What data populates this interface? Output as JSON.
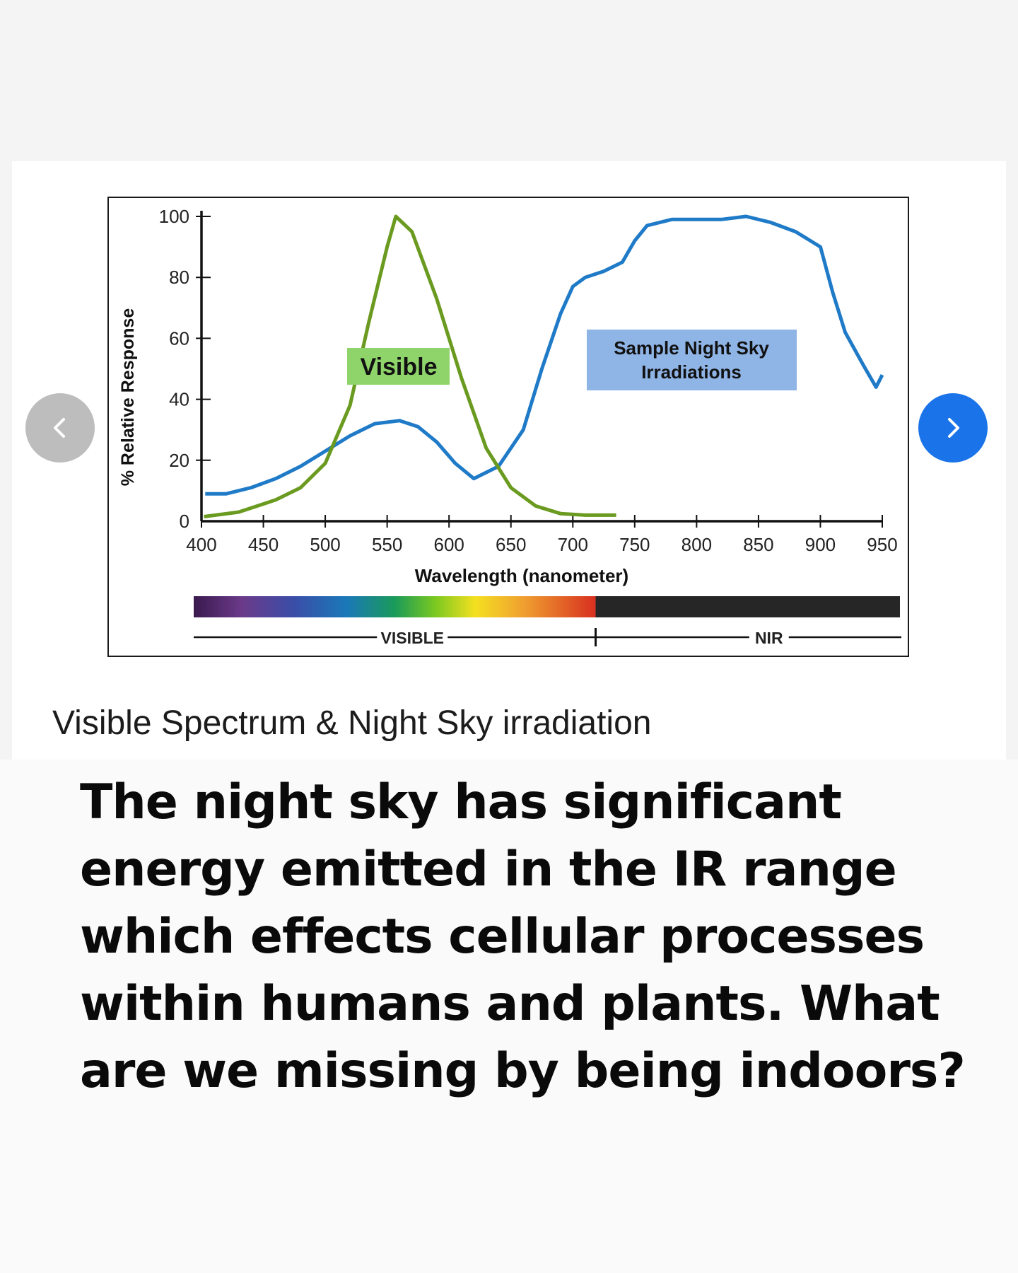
{
  "caption": "Visible Spectrum & Night Sky irradiation",
  "headline": {
    "lines": [
      "The night sky has significant",
      "energy emitted in the IR range",
      "which effects cellular processes",
      "within humans and plants. What",
      "are we missing by being indoors?"
    ]
  },
  "nav": {
    "prev_icon": "chevron-left-icon",
    "next_icon": "chevron-right-icon"
  },
  "colors": {
    "visible_curve": "#6a9a1f",
    "night_sky_curve": "#1f7ac7",
    "visible_label_bg": "#8fd46a",
    "night_label_bg": "#8fb4e6",
    "next_button": "#1a73e8",
    "prev_button": "#bdbdbd"
  },
  "chart_data": {
    "type": "line",
    "title": "",
    "xlabel": "Wavelength (nanometer)",
    "ylabel": "% Relative Response",
    "xlim": [
      400,
      950
    ],
    "ylim": [
      0,
      100
    ],
    "x_ticks": [
      400,
      450,
      500,
      550,
      600,
      650,
      700,
      750,
      800,
      850,
      900,
      950
    ],
    "y_ticks": [
      0,
      20,
      40,
      60,
      80,
      100
    ],
    "grid": false,
    "annotations": [
      {
        "text": "Visible",
        "series": "visible"
      },
      {
        "text": "Sample Night Sky",
        "text2": "Irradiations",
        "series": "night"
      }
    ],
    "spectrum_bar": {
      "visible_label": "VISIBLE",
      "nir_label": "NIR",
      "boundary": 713
    },
    "series": [
      {
        "key": "visible",
        "x": [
          402,
          430,
          460,
          480,
          500,
          520,
          535,
          550,
          557,
          570,
          590,
          610,
          630,
          650,
          670,
          690,
          710,
          720,
          735
        ],
        "y": [
          1.5,
          3,
          7,
          11,
          19,
          38,
          65,
          90,
          100,
          95,
          73,
          47,
          24,
          11,
          5,
          2.5,
          2,
          2,
          2
        ]
      },
      {
        "key": "night",
        "x": [
          403,
          420,
          440,
          460,
          480,
          500,
          520,
          540,
          560,
          575,
          590,
          605,
          620,
          640,
          660,
          675,
          690,
          700,
          710,
          725,
          740,
          750,
          760,
          780,
          800,
          820,
          840,
          860,
          880,
          900,
          910,
          920,
          935,
          945,
          950
        ],
        "y": [
          9,
          9,
          11,
          14,
          18,
          23,
          28,
          32,
          33,
          31,
          26,
          19,
          14,
          18,
          30,
          50,
          68,
          77,
          80,
          82,
          85,
          92,
          97,
          99,
          99,
          99,
          100,
          98,
          95,
          90,
          75,
          62,
          51,
          44,
          48
        ]
      }
    ]
  }
}
